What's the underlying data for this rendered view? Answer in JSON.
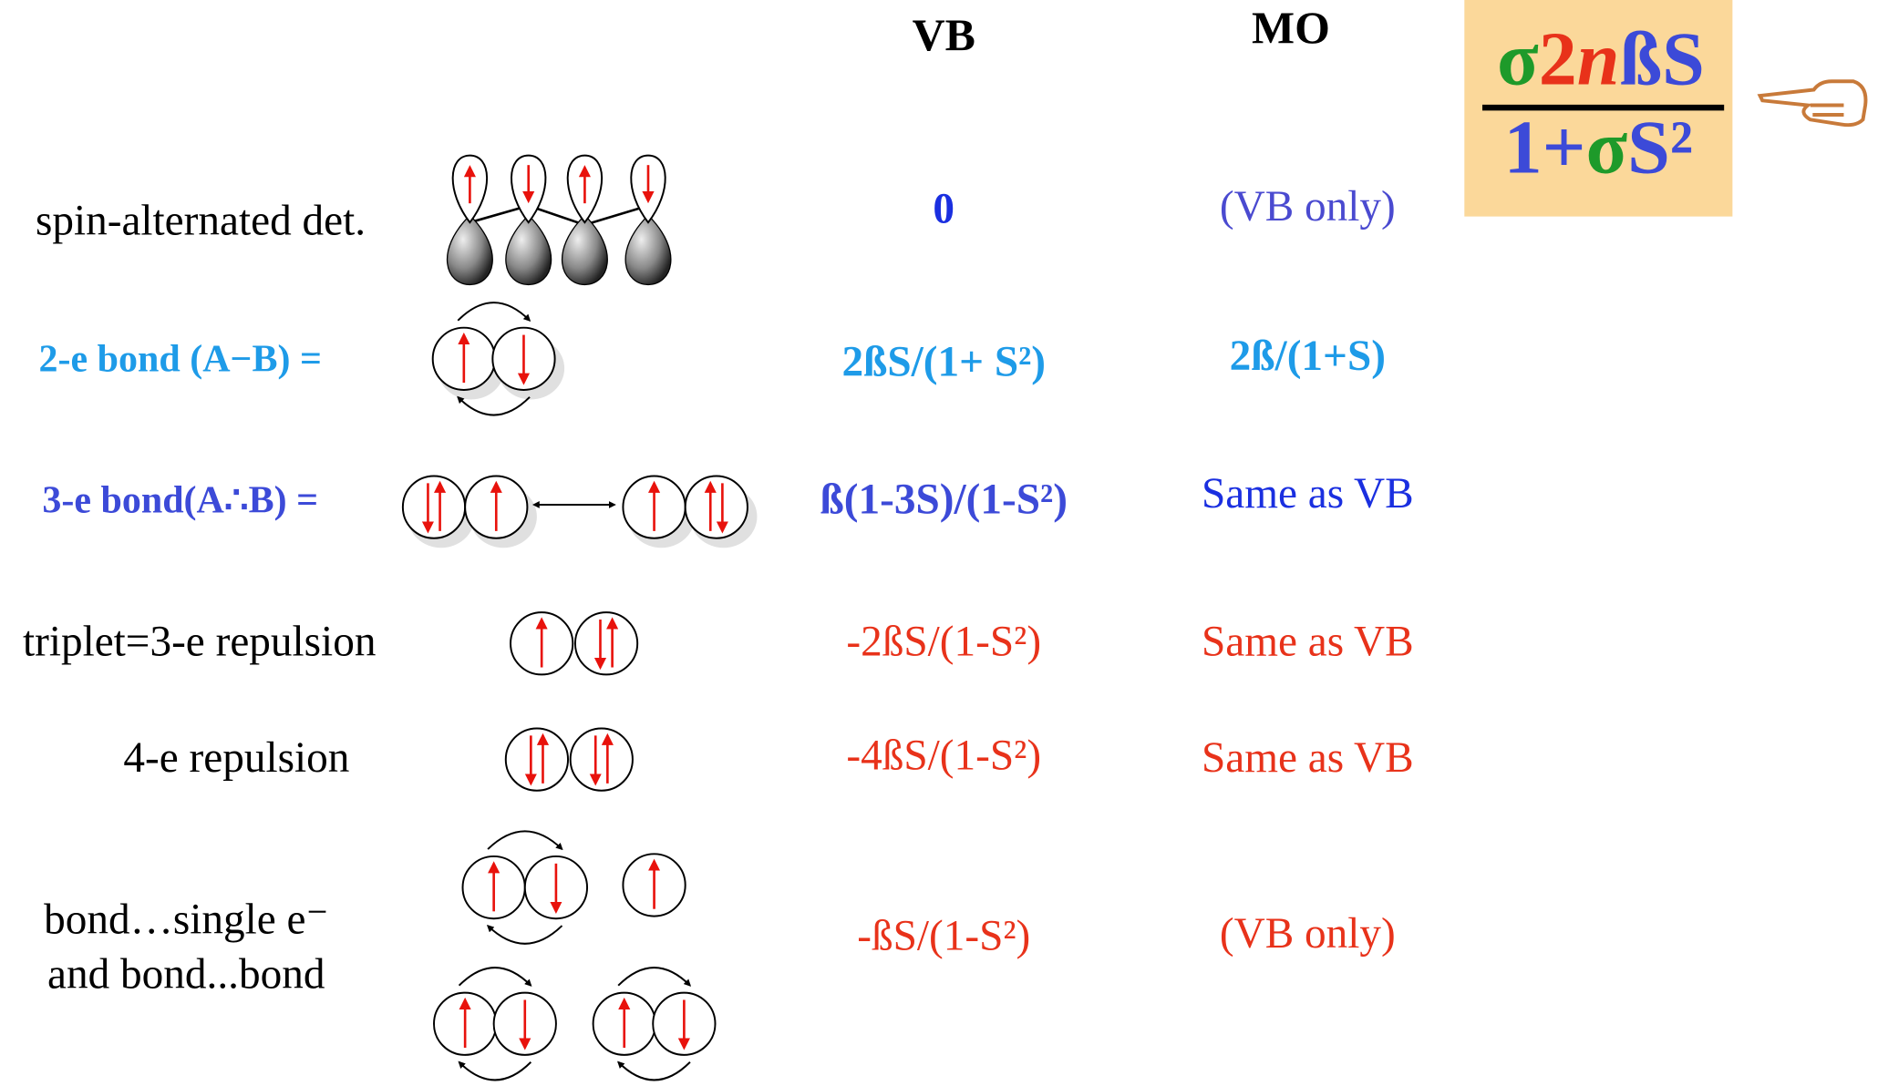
{
  "header": {
    "vb": "VB",
    "mo": "MO"
  },
  "formula": {
    "numerator": [
      "σ",
      "2",
      "n",
      "ßS"
    ],
    "denominator": [
      "1+",
      "σ",
      "S²"
    ]
  },
  "rows": [
    {
      "label": [
        "spin-alternated det."
      ],
      "vb": "0",
      "mo": "(VB only)"
    },
    {
      "label": [
        "2-e bond (A−B) ="
      ],
      "vb": "2ßS/(1+ S²)",
      "mo": "2ß/(1+S)"
    },
    {
      "label": [
        "3-e bond(A∴B) ="
      ],
      "vb": "ß(1-3S)/(1-S²)",
      "mo": "Same as VB"
    },
    {
      "label": [
        "triplet=3-e repulsion"
      ],
      "vb": "-2ßS/(1-S²)",
      "mo": "Same as VB"
    },
    {
      "label": [
        "4-e repulsion"
      ],
      "vb": "-4ßS/(1-S²)",
      "mo": "Same as VB"
    },
    {
      "label": [
        "bond…single e⁻",
        "and bond...bond"
      ],
      "vb": "-ßS/(1-S²)",
      "mo": "(VB only)"
    }
  ]
}
